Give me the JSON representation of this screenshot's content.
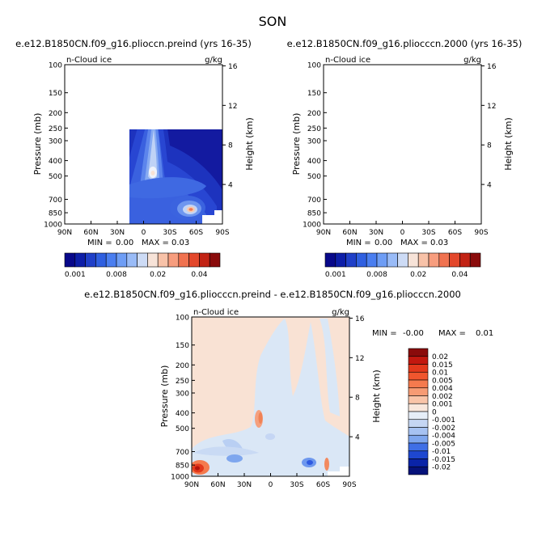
{
  "figure_title": "SON",
  "chart_data": [
    {
      "type": "heatmap",
      "title": "e.e12.B1850CN.f09_g16.plioccn.preind (yrs 16-35)",
      "variable_label": "n-Cloud ice",
      "units_label": "g/kg",
      "ylabel": "Pressure (mb)",
      "y2label": "Height (km)",
      "x_ticks": [
        "90N",
        "60N",
        "30N",
        "0",
        "30S",
        "60S",
        "90S"
      ],
      "y_ticks": [
        "100",
        "150",
        "200",
        "250",
        "300",
        "400",
        "500",
        "700",
        "850",
        "1000"
      ],
      "y2_ticks": [
        "16",
        "12",
        "8",
        "4"
      ],
      "min_label": "MIN =",
      "min_value": "0.00",
      "max_label": "MAX =",
      "max_value": "0.03",
      "colorbar_ticks": [
        "0.001",
        "0.008",
        "0.02",
        "0.04"
      ]
    },
    {
      "type": "heatmap",
      "title": "e.e12.B1850CN.f09_g16.pliocccn.2000 (yrs 16-35)",
      "variable_label": "n-Cloud ice",
      "units_label": "g/kg",
      "ylabel": "Pressure (mb)",
      "y2label": "Height (km)",
      "x_ticks": [
        "90N",
        "60N",
        "30N",
        "0",
        "30S",
        "60S",
        "90S"
      ],
      "y_ticks": [
        "100",
        "150",
        "200",
        "250",
        "300",
        "400",
        "500",
        "700",
        "850",
        "1000"
      ],
      "y2_ticks": [
        "16",
        "12",
        "8",
        "4"
      ],
      "min_label": "MIN =",
      "min_value": "0.00",
      "max_label": "MAX =",
      "max_value": "0.03",
      "colorbar_ticks": [
        "0.001",
        "0.008",
        "0.02",
        "0.04"
      ]
    },
    {
      "type": "heatmap",
      "title": "e.e12.B1850CN.f09_g16.pliocccn.preind - e.e12.B1850CN.f09_g16.pliocccn.2000",
      "variable_label": "n-Cloud ice",
      "units_label": "g/kg",
      "ylabel": "Pressure (mb)",
      "y2label": "Height (km)",
      "x_ticks": [
        "90N",
        "60N",
        "30N",
        "0",
        "30S",
        "60S",
        "90S"
      ],
      "y_ticks": [
        "100",
        "150",
        "200",
        "250",
        "300",
        "400",
        "500",
        "700",
        "850",
        "1000"
      ],
      "y2_ticks": [
        "16",
        "12",
        "8",
        "4"
      ],
      "min_label": "MIN =",
      "min_value": "-0.00",
      "max_label": "MAX =",
      "max_value": "0.01",
      "legend_levels": [
        "0.02",
        "0.015",
        "0.01",
        "0.005",
        "0.004",
        "0.002",
        "0.001",
        "0",
        "-0.001",
        "-0.002",
        "-0.004",
        "-0.005",
        "-0.01",
        "-0.015",
        "-0.02"
      ]
    }
  ],
  "colors": {
    "seq_scale": [
      "#08088a",
      "#0d1ea8",
      "#1f3fc8",
      "#2f5fe0",
      "#4a7ef0",
      "#6e9df5",
      "#99bbf7",
      "#cddbf5",
      "#f7e3d8",
      "#f8c2a8",
      "#f79d7e",
      "#f07250",
      "#e3472b",
      "#c22314",
      "#8a0b0b"
    ],
    "div_scale": [
      "#8a0b0b",
      "#c2180f",
      "#e3391c",
      "#f0562e",
      "#f57a4e",
      "#f79b74",
      "#f9c4a8",
      "#f9e7dc",
      "#e6eef8",
      "#c5d6f3",
      "#a6c2f2",
      "#7ea6ee",
      "#3f6fe6",
      "#1e47d0",
      "#0a24a8",
      "#06127a"
    ]
  }
}
